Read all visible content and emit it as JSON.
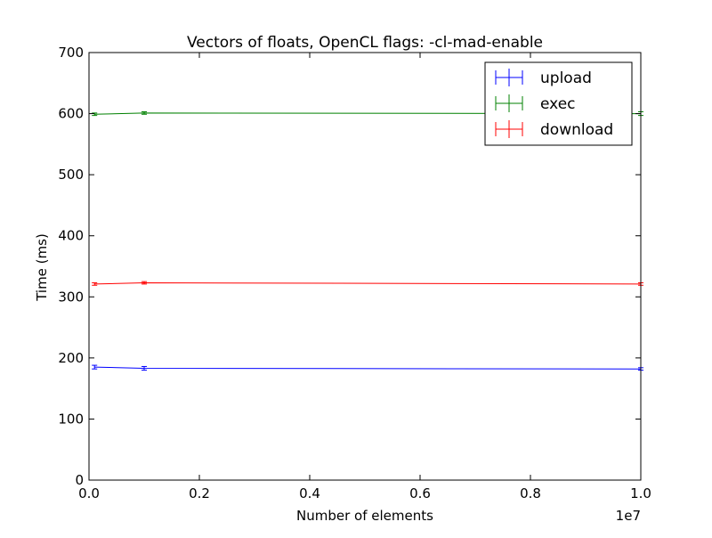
{
  "chart_data": {
    "type": "line",
    "title": "Vectors of floats, OpenCL flags: -cl-mad-enable",
    "xlabel": "Number of elements",
    "ylabel": "Time (ms)",
    "x_offset_label": "1e7",
    "xlim": [
      0,
      1.0
    ],
    "ylim": [
      0,
      700
    ],
    "xticks": [
      0.0,
      0.2,
      0.4,
      0.6,
      0.8,
      1.0
    ],
    "xtick_labels": [
      "0.0",
      "0.2",
      "0.4",
      "0.6",
      "0.8",
      "1.0"
    ],
    "yticks": [
      0,
      100,
      200,
      300,
      400,
      500,
      600,
      700
    ],
    "ytick_labels": [
      "0",
      "100",
      "200",
      "300",
      "400",
      "500",
      "600",
      "700"
    ],
    "grid": false,
    "legend_position": "top-right",
    "x": [
      0.01,
      0.1,
      1.0
    ],
    "series": [
      {
        "name": "upload",
        "color": "#0000ff",
        "values": [
          185,
          183,
          182
        ],
        "errors": [
          3,
          3,
          2
        ]
      },
      {
        "name": "exec",
        "color": "#008000",
        "values": [
          599,
          601,
          600
        ],
        "errors": [
          2,
          2,
          3
        ]
      },
      {
        "name": "download",
        "color": "#ff0000",
        "values": [
          321,
          323,
          321
        ],
        "errors": [
          2,
          2,
          2
        ]
      }
    ]
  }
}
